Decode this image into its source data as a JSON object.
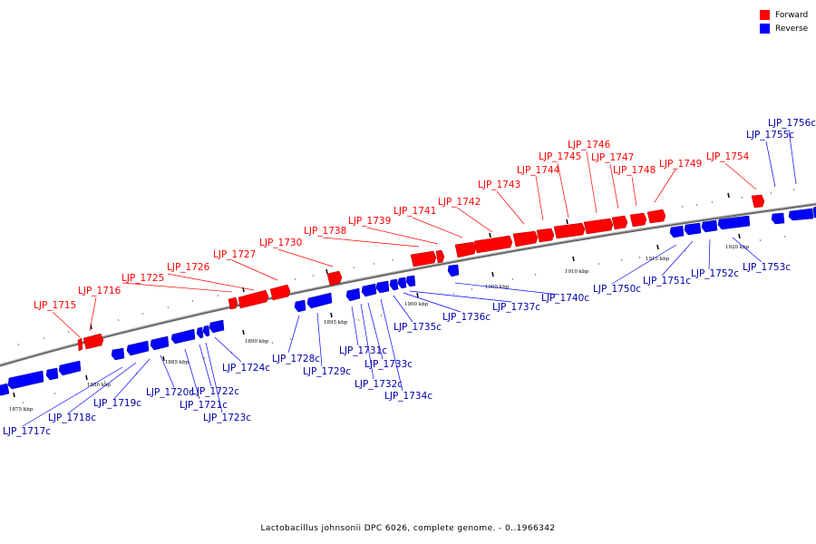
{
  "legend": {
    "forward_label": "Forward",
    "reverse_label": "Reverse",
    "forward_color": "#ff0000",
    "reverse_color": "#0000ff"
  },
  "footer": "Lactobacillus johnsonii DPC 6026, complete genome. - 0..1966342",
  "kbp_ticks": [
    "1875 kbp",
    "1880 kbp",
    "1885 kbp",
    "1890 kbp",
    "1895 kbp",
    "1900 kbp",
    "1905 kbp",
    "1910 kbp",
    "1915 kbp",
    "1920 kbp"
  ],
  "forward_genes": [
    "LJP_1715",
    "LJP_1716",
    "LJP_1725",
    "LJP_1726",
    "LJP_1727",
    "LJP_1730",
    "LJP_1738",
    "LJP_1739",
    "LJP_1741",
    "LJP_1742",
    "LJP_1743",
    "LJP_1744",
    "LJP_1745",
    "LJP_1746",
    "LJP_1747",
    "LJP_1748",
    "LJP_1749",
    "LJP_1754"
  ],
  "reverse_genes": [
    "LJP_1717c",
    "LJP_1718c",
    "LJP_1719c",
    "LJP_1720c",
    "LJP_1721c",
    "LJP_1722c",
    "LJP_1723c",
    "LJP_1724c",
    "LJP_1728c",
    "LJP_1729c",
    "LJP_1731c",
    "LJP_1732c",
    "LJP_1733c",
    "LJP_1734c",
    "LJP_1735c",
    "LJP_1736c",
    "LJP_1737c",
    "LJP_1740c",
    "LJP_1750c",
    "LJP_1751c",
    "LJP_1752c",
    "LJP_1753c",
    "LJP_1755c",
    "LJP_1756c"
  ]
}
